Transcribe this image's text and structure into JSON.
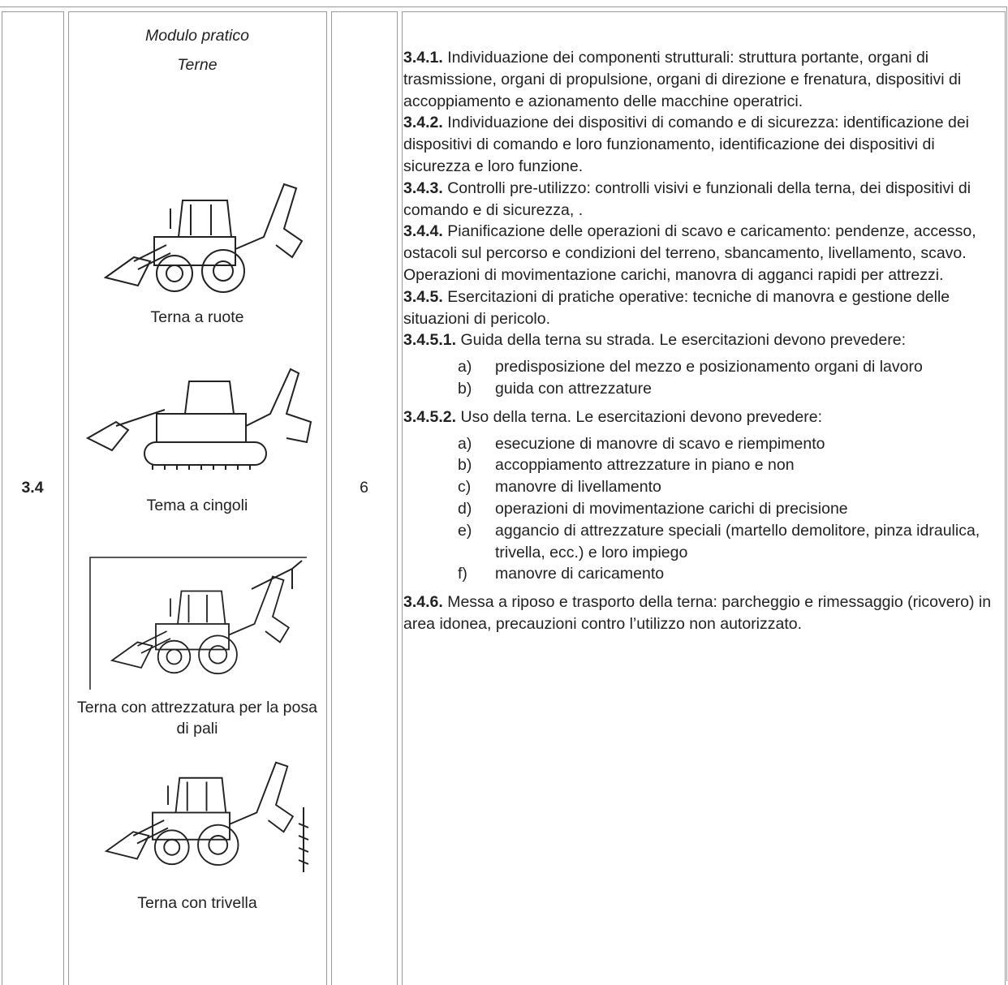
{
  "row": {
    "code": "3.4",
    "module": {
      "title": "Modulo pratico",
      "subtitle": "Terne",
      "figures": [
        {
          "caption": "Terna a ruote"
        },
        {
          "caption": "Tema a cingoli"
        },
        {
          "caption": "Terna con attrezzatura per la posa di pali"
        },
        {
          "caption": "Terna con trivella"
        }
      ]
    },
    "hours": "6",
    "content": [
      {
        "num": "3.4.1.",
        "text": "Individuazione dei componenti strutturali: struttura portante, organi di trasmissione, organi di propulsione, organi di direzione e frenatura, dispositivi di accoppiamento e azionamento delle macchine operatrici."
      },
      {
        "num": "3.4.2.",
        "text": "Individuazione dei dispositivi di comando e di sicurezza: identificazione dei dispositivi di comando e loro funzionamento, identificazione dei dispositivi di sicurezza e loro funzione."
      },
      {
        "num": "3.4.3.",
        "text": "Controlli pre-utilizzo: controlli visivi e funzionali della terna, dei dispositivi di comando e di sicurezza, ."
      },
      {
        "num": "3.4.4.",
        "text": "Pianificazione delle operazioni di scavo e caricamento: pendenze, accesso, ostacoli sul percorso e condizioni del terreno, sbancamento, livellamento, scavo. Operazioni di movimentazione carichi, manovra di agganci rapidi per attrezzi."
      },
      {
        "num": "3.4.5.",
        "text": "Esercitazioni di pratiche operative: tecniche di manovra e gestione delle situazioni di pericolo."
      },
      {
        "num": "3.4.5.1.",
        "text": "Guida della terna su strada. Le esercitazioni devono prevedere:",
        "items": [
          {
            "marker": "a)",
            "text": "predisposizione del mezzo e posizionamento organi di lavoro"
          },
          {
            "marker": "b)",
            "text": "guida con attrezzature"
          }
        ]
      },
      {
        "num": "3.4.5.2.",
        "text": "Uso della terna. Le esercitazioni devono prevedere:",
        "items": [
          {
            "marker": "a)",
            "text": "esecuzione di manovre di scavo e riempimento"
          },
          {
            "marker": "b)",
            "text": "accoppiamento attrezzature in piano e non"
          },
          {
            "marker": "c)",
            "text": "manovre di livellamento"
          },
          {
            "marker": "d)",
            "text": "operazioni di movimentazione carichi di precisione"
          },
          {
            "marker": "e)",
            "text": "aggancio di attrezzature speciali (martello demolitore, pinza idraulica, trivella, ecc.) e loro impiego"
          },
          {
            "marker": "f)",
            "text": "manovre di caricamento"
          }
        ]
      },
      {
        "num": "3.4.6.",
        "text": "Messa a riposo e trasporto della terna: parcheggio e rimessaggio (ricovero) in area idonea, precauzioni contro l’utilizzo non autorizzato."
      }
    ]
  }
}
